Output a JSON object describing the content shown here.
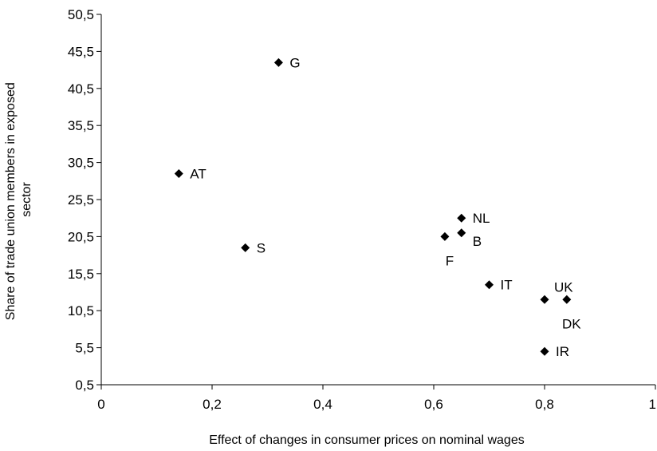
{
  "chart_data": {
    "type": "scatter",
    "xlabel": "Effect of changes in consumer prices on nominal wages",
    "ylabel": [
      "Share of trade union members in exposed",
      "sector"
    ],
    "xlim": [
      0,
      1
    ],
    "ylim": [
      0.5,
      50.5
    ],
    "x_ticks": [
      0,
      0.2,
      0.4,
      0.6,
      0.8,
      1
    ],
    "x_tick_labels": [
      "0",
      "0,2",
      "0,4",
      "0,6",
      "0,8",
      "1"
    ],
    "y_ticks": [
      0.5,
      5.5,
      10.5,
      15.5,
      20.5,
      25.5,
      30.5,
      35.5,
      40.5,
      45.5,
      50.5
    ],
    "y_tick_labels": [
      "0,5",
      "5,5",
      "10,5",
      "15,5",
      "20,5",
      "25,5",
      "30,5",
      "35,5",
      "40,5",
      "45,5",
      "50,5"
    ],
    "grid": false,
    "legend": "none",
    "marker": "diamond",
    "points": [
      {
        "label": "G",
        "x": 0.32,
        "y": 44.0,
        "label_pos": "right"
      },
      {
        "label": "AT",
        "x": 0.14,
        "y": 29.0,
        "label_pos": "right"
      },
      {
        "label": "S",
        "x": 0.26,
        "y": 19.0,
        "label_pos": "right"
      },
      {
        "label": "NL",
        "x": 0.65,
        "y": 23.0,
        "label_pos": "right"
      },
      {
        "label": "B",
        "x": 0.65,
        "y": 21.0,
        "label_pos": "below-right"
      },
      {
        "label": "F",
        "x": 0.62,
        "y": 20.5,
        "label_pos": "below"
      },
      {
        "label": "IT",
        "x": 0.7,
        "y": 14.0,
        "label_pos": "right"
      },
      {
        "label": "UK",
        "x": 0.8,
        "y": 12.0,
        "label_pos": "above-right"
      },
      {
        "label": "DK",
        "x": 0.84,
        "y": 12.0,
        "label_pos": "below"
      },
      {
        "label": "IR",
        "x": 0.8,
        "y": 5.0,
        "label_pos": "right"
      }
    ]
  }
}
